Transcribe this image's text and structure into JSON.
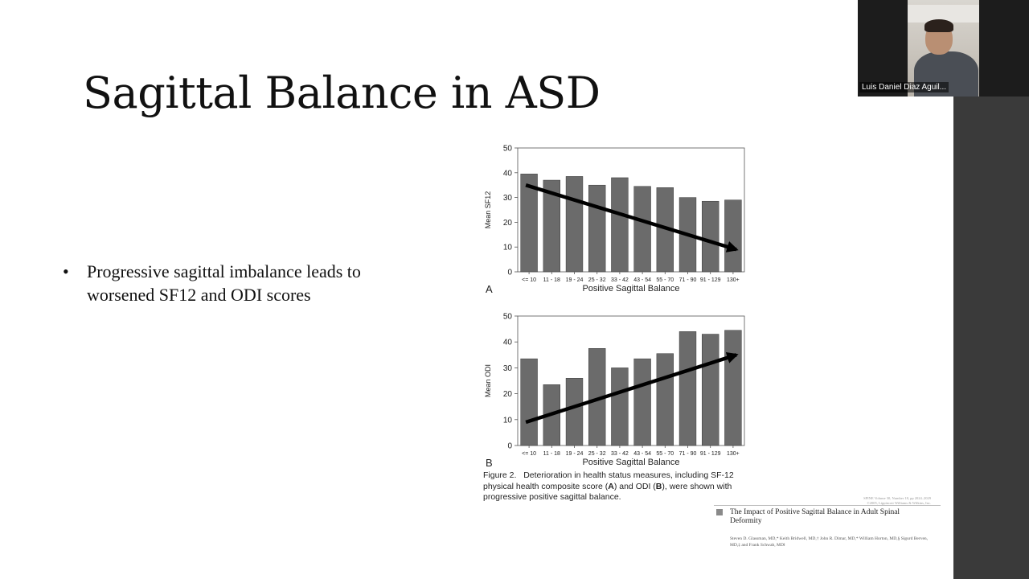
{
  "slide": {
    "title": "Sagittal Balance in ASD",
    "bullets": [
      {
        "mark": "•",
        "text": "Progressive sagittal imbalance leads to worsened SF12 and ODI scores"
      }
    ]
  },
  "chart_data": [
    {
      "type": "bar",
      "panel_letter": "A",
      "categories": [
        "<= 10",
        "11 - 18",
        "19 - 24",
        "25 - 32",
        "33 - 42",
        "43 - 54",
        "55 - 70",
        "71 - 90",
        "91 - 129",
        "130+"
      ],
      "values": [
        39.5,
        37,
        38.5,
        35,
        38,
        34.5,
        34,
        30,
        28.5,
        29
      ],
      "xlabel": "Positive Sagittal Balance",
      "ylabel": "Mean SF12",
      "ylim": [
        0,
        50
      ],
      "yticks": [
        "0",
        "10",
        "20",
        "30",
        "40",
        "50"
      ],
      "trend_arrow": {
        "from": {
          "category_index": 0,
          "y": 35
        },
        "to": {
          "category_index": 9,
          "y": 9
        }
      },
      "grid": false,
      "bar_color": "#6b6b6b"
    },
    {
      "type": "bar",
      "panel_letter": "B",
      "categories": [
        "<= 10",
        "11 - 18",
        "19 - 24",
        "25 - 32",
        "33 - 42",
        "43 - 54",
        "55 - 70",
        "71 - 90",
        "91 - 129",
        "130+"
      ],
      "values": [
        33.5,
        23.5,
        26,
        37.5,
        30,
        33.5,
        35.5,
        44,
        43,
        44.5
      ],
      "xlabel": "Positive Sagittal Balance",
      "ylabel": "Mean ODI",
      "ylim": [
        0,
        50
      ],
      "yticks": [
        "0",
        "10",
        "20",
        "30",
        "40",
        "50"
      ],
      "trend_arrow": {
        "from": {
          "category_index": 0,
          "y": 9
        },
        "to": {
          "category_index": 9,
          "y": 35
        }
      },
      "grid": false,
      "bar_color": "#6b6b6b"
    }
  ],
  "figure": {
    "label": "Figure 2.",
    "caption_part1": "Deterioration in health status measures, including SF-12 physical health composite score (",
    "caption_bold_a": "A",
    "caption_part2": ") and ODI (",
    "caption_bold_b": "B",
    "caption_part3": "), were shown with progressive positive sagittal balance."
  },
  "paper": {
    "journal_line1": "SPINE Volume 30, Number 18, pp 2024–2029",
    "journal_line2": "©2005, Lippincott Williams & Wilkins, Inc.",
    "title": "The Impact of Positive Sagittal Balance in Adult Spinal Deformity",
    "authors": "Steven D. Glassman, MD,* Keith Bridwell, MD,† John R. Dimar, MD,* William Horton, MD,§ Sigurd Berven, MD,‡ and Frank Schwab, MD‖"
  },
  "video": {
    "participant_name": "Luis Daniel Diaz Aguil..."
  },
  "colors": {
    "bar": "#6b6b6b",
    "arrow": "#000000",
    "panel_background": "#3a3a3a",
    "video_background": "#1c1c1c"
  }
}
